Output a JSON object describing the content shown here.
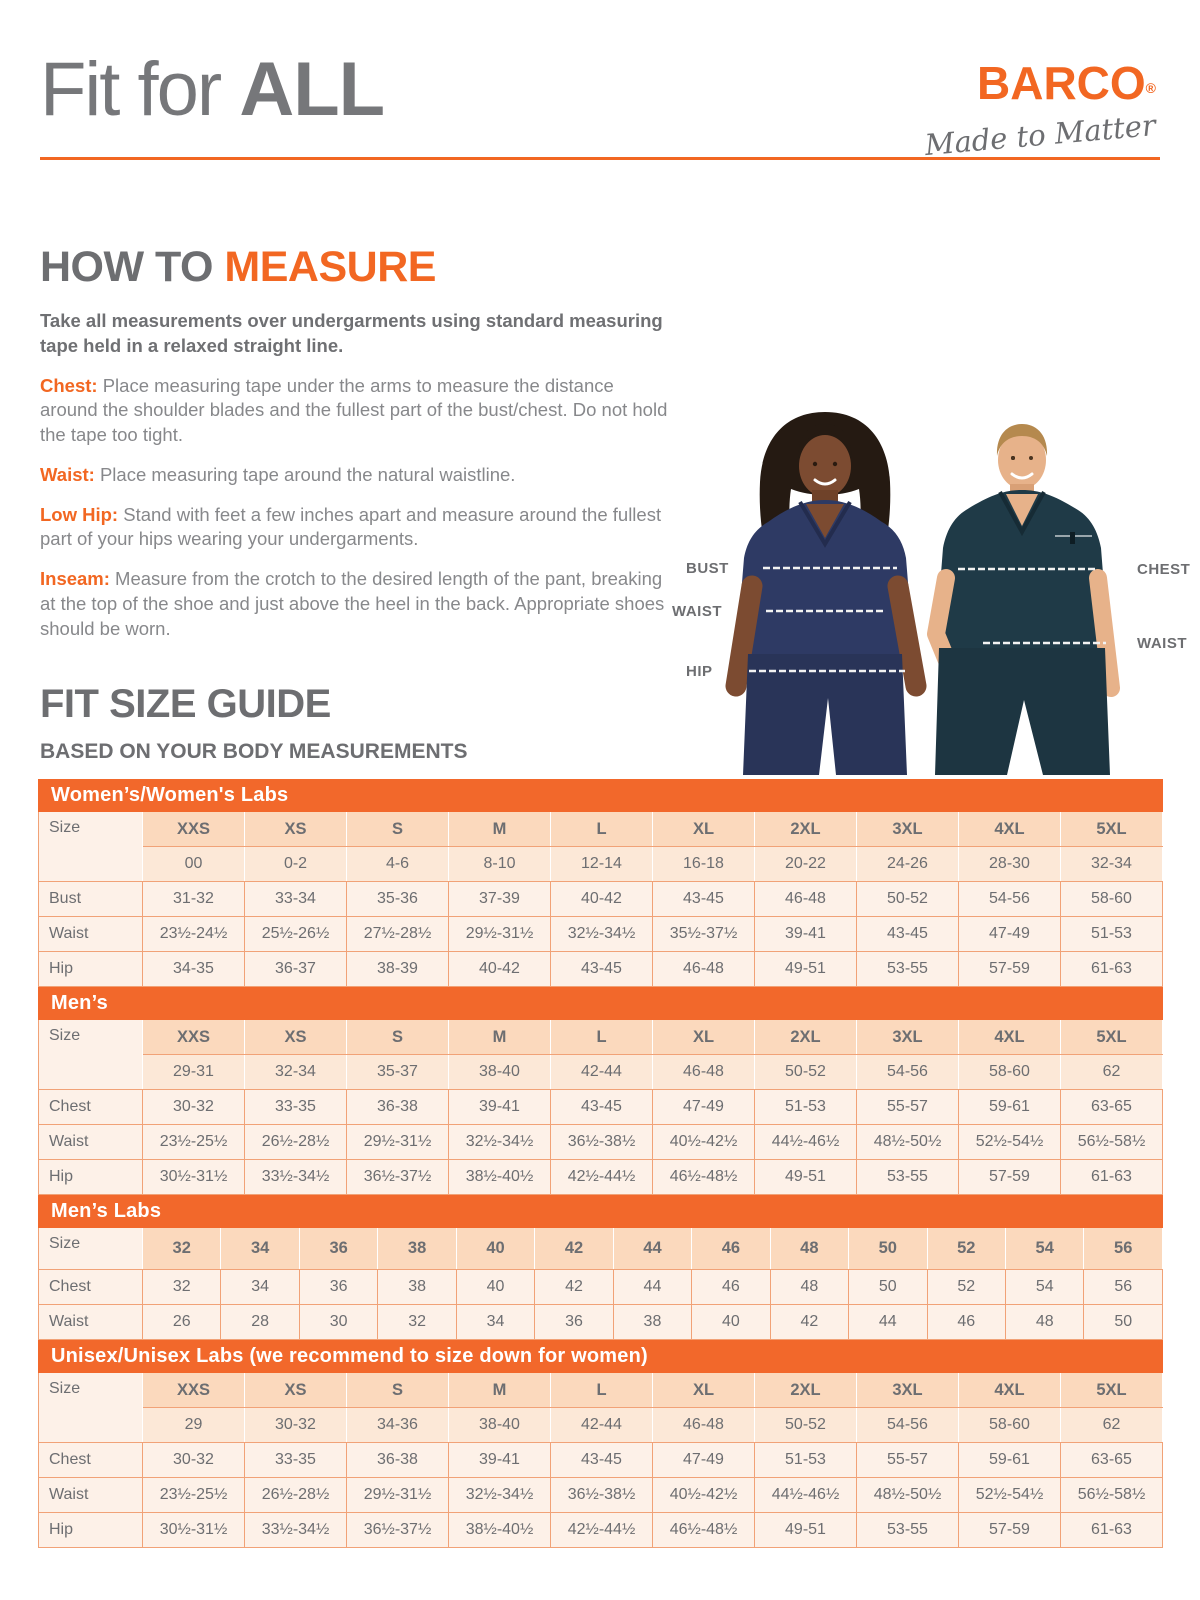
{
  "header": {
    "title_light": "Fit for ",
    "title_bold": "ALL",
    "brand_name": "BARCO",
    "brand_reg": "®",
    "brand_tagline": "Made to Matter"
  },
  "how_to_measure": {
    "heading_gray": "HOW TO ",
    "heading_orange": "MEASURE",
    "intro": "Take all measurements over undergarments using standard measuring tape held in a relaxed straight line.",
    "items": [
      {
        "label": "Chest:",
        "text": "  Place measuring tape under the arms to measure the distance around the shoulder blades and the fullest part of the bust/chest. Do not hold the tape too tight."
      },
      {
        "label": "Waist:",
        "text": "  Place measuring tape around the natural waistline."
      },
      {
        "label": "Low Hip:",
        "text": "  Stand with feet a few inches apart and measure around the fullest part of your hips wearing your undergarments."
      },
      {
        "label": "Inseam:",
        "text": "  Measure from the crotch to the desired length of the pant, breaking at the top of the shoe and just above the heel in the back. Appropriate shoes should be worn."
      }
    ]
  },
  "figure": {
    "labels_left": [
      "BUST",
      "WAIST",
      "HIP"
    ],
    "labels_right": [
      "CHEST",
      "WAIST"
    ]
  },
  "size_guide": {
    "heading": "FIT SIZE GUIDE",
    "subheading": "BASED ON YOUR BODY MEASUREMENTS",
    "tables": [
      {
        "title": "Women’s/Women's Labs",
        "corner_label": "Size",
        "size_labels": [
          "XXS",
          "XS",
          "S",
          "M",
          "L",
          "XL",
          "2XL",
          "3XL",
          "4XL",
          "5XL"
        ],
        "size_numbers": [
          "00",
          "0-2",
          "4-6",
          "8-10",
          "12-14",
          "16-18",
          "20-22",
          "24-26",
          "28-30",
          "32-34"
        ],
        "rows": [
          {
            "label": "Bust",
            "values": [
              "31-32",
              "33-34",
              "35-36",
              "37-39",
              "40-42",
              "43-45",
              "46-48",
              "50-52",
              "54-56",
              "58-60"
            ]
          },
          {
            "label": "Waist",
            "values": [
              "23½-24½",
              "25½-26½",
              "27½-28½",
              "29½-31½",
              "32½-34½",
              "35½-37½",
              "39-41",
              "43-45",
              "47-49",
              "51-53"
            ]
          },
          {
            "label": "Hip",
            "values": [
              "34-35",
              "36-37",
              "38-39",
              "40-42",
              "43-45",
              "46-48",
              "49-51",
              "53-55",
              "57-59",
              "61-63"
            ]
          }
        ]
      },
      {
        "title": "Men’s",
        "corner_label": "Size",
        "size_labels": [
          "XXS",
          "XS",
          "S",
          "M",
          "L",
          "XL",
          "2XL",
          "3XL",
          "4XL",
          "5XL"
        ],
        "size_numbers": [
          "29-31",
          "32-34",
          "35-37",
          "38-40",
          "42-44",
          "46-48",
          "50-52",
          "54-56",
          "58-60",
          "62"
        ],
        "rows": [
          {
            "label": "Chest",
            "values": [
              "30-32",
              "33-35",
              "36-38",
              "39-41",
              "43-45",
              "47-49",
              "51-53",
              "55-57",
              "59-61",
              "63-65"
            ]
          },
          {
            "label": "Waist",
            "values": [
              "23½-25½",
              "26½-28½",
              "29½-31½",
              "32½-34½",
              "36½-38½",
              "40½-42½",
              "44½-46½",
              "48½-50½",
              "52½-54½",
              "56½-58½"
            ]
          },
          {
            "label": "Hip",
            "values": [
              "30½-31½",
              "33½-34½",
              "36½-37½",
              "38½-40½",
              "42½-44½",
              "46½-48½",
              "49-51",
              "53-55",
              "57-59",
              "61-63"
            ]
          }
        ]
      },
      {
        "title": "Men’s Labs",
        "corner_label": "Size",
        "size_labels": [
          "32",
          "34",
          "36",
          "38",
          "40",
          "42",
          "44",
          "46",
          "48",
          "50",
          "52",
          "54",
          "56"
        ],
        "size_numbers": null,
        "rows": [
          {
            "label": "Chest",
            "values": [
              "32",
              "34",
              "36",
              "38",
              "40",
              "42",
              "44",
              "46",
              "48",
              "50",
              "52",
              "54",
              "56"
            ]
          },
          {
            "label": "Waist",
            "values": [
              "26",
              "28",
              "30",
              "32",
              "34",
              "36",
              "38",
              "40",
              "42",
              "44",
              "46",
              "48",
              "50"
            ]
          }
        ]
      },
      {
        "title": "Unisex/Unisex Labs (we recommend to size down for women)",
        "corner_label": "Size",
        "size_labels": [
          "XXS",
          "XS",
          "S",
          "M",
          "L",
          "XL",
          "2XL",
          "3XL",
          "4XL",
          "5XL"
        ],
        "size_numbers": [
          "29",
          "30-32",
          "34-36",
          "38-40",
          "42-44",
          "46-48",
          "50-52",
          "54-56",
          "58-60",
          "62"
        ],
        "rows": [
          {
            "label": "Chest",
            "values": [
              "30-32",
              "33-35",
              "36-38",
              "39-41",
              "43-45",
              "47-49",
              "51-53",
              "55-57",
              "59-61",
              "63-65"
            ]
          },
          {
            "label": "Waist",
            "values": [
              "23½-25½",
              "26½-28½",
              "29½-31½",
              "32½-34½",
              "36½-38½",
              "40½-42½",
              "44½-46½",
              "48½-50½",
              "52½-54½",
              "56½-58½"
            ]
          },
          {
            "label": "Hip",
            "values": [
              "30½-31½",
              "33½-34½",
              "36½-37½",
              "38½-40½",
              "42½-44½",
              "46½-48½",
              "49-51",
              "53-55",
              "57-59",
              "61-63"
            ]
          }
        ]
      }
    ]
  },
  "colors": {
    "accent_orange": "#f26722",
    "bar_orange": "#f2682b",
    "heading_gray": "#6d6e71",
    "body_gray": "#87888b",
    "table_border": "#f1a277",
    "header_cell_bg": "#fbd9bd",
    "number_row_bg": "#fce8d7",
    "data_cell_bg": "#fdf1e8",
    "woman_scrub_navy": "#2e3a64",
    "man_scrub_teal": "#1f3a47"
  }
}
